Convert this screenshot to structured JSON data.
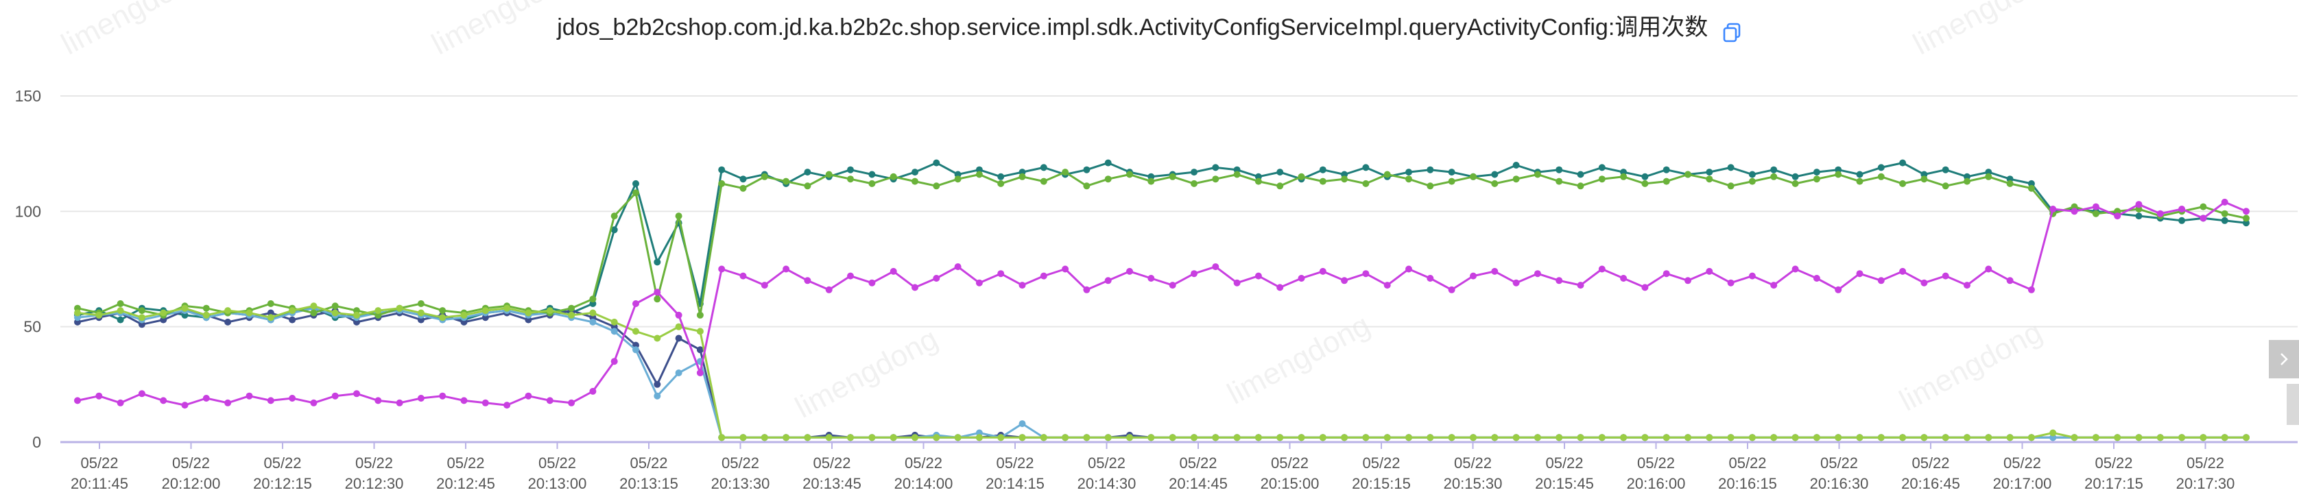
{
  "title": "jdos_b2b2cshop.com.jd.ka.b2b2c.shop.service.impl.sdk.ActivityConfigServiceImpl.queryActivityConfig:调用次数",
  "watermark_text": "limengdong",
  "icons": {
    "copy": "copy-icon",
    "next": "chevron-right-icon"
  },
  "chart_data": {
    "type": "line",
    "title": "jdos_b2b2cshop.com.jd.ka.b2b2c.shop.service.impl.sdk.ActivityConfigServiceImpl.queryActivityConfig:调用次数",
    "ylim": [
      0,
      150
    ],
    "y_ticks": [
      0,
      50,
      100,
      150
    ],
    "x_ticks": [
      {
        "date": "05/22",
        "time": "20:11:45"
      },
      {
        "date": "05/22",
        "time": "20:12:00"
      },
      {
        "date": "05/22",
        "time": "20:12:15"
      },
      {
        "date": "05/22",
        "time": "20:12:30"
      },
      {
        "date": "05/22",
        "time": "20:12:45"
      },
      {
        "date": "05/22",
        "time": "20:13:00"
      },
      {
        "date": "05/22",
        "time": "20:13:15"
      },
      {
        "date": "05/22",
        "time": "20:13:30"
      },
      {
        "date": "05/22",
        "time": "20:13:45"
      },
      {
        "date": "05/22",
        "time": "20:14:00"
      },
      {
        "date": "05/22",
        "time": "20:14:15"
      },
      {
        "date": "05/22",
        "time": "20:14:30"
      },
      {
        "date": "05/22",
        "time": "20:14:45"
      },
      {
        "date": "05/22",
        "time": "20:15:00"
      },
      {
        "date": "05/22",
        "time": "20:15:15"
      },
      {
        "date": "05/22",
        "time": "20:15:30"
      },
      {
        "date": "05/22",
        "time": "20:15:45"
      },
      {
        "date": "05/22",
        "time": "20:16:00"
      },
      {
        "date": "05/22",
        "time": "20:16:15"
      },
      {
        "date": "05/22",
        "time": "20:16:30"
      },
      {
        "date": "05/22",
        "time": "20:16:45"
      },
      {
        "date": "05/22",
        "time": "20:17:00"
      },
      {
        "date": "05/22",
        "time": "20:17:15"
      },
      {
        "date": "05/22",
        "time": "20:17:30"
      }
    ],
    "grid": true,
    "legend": "none",
    "series": [
      {
        "color": "#1f7d7a",
        "values": [
          55,
          57,
          53,
          58,
          57,
          55,
          54,
          56,
          55,
          53,
          57,
          58,
          54,
          55,
          56,
          57,
          55,
          54,
          53,
          56,
          57,
          55,
          58,
          56,
          60,
          92,
          112,
          78,
          95,
          60,
          118,
          114,
          116,
          112,
          117,
          115,
          118,
          116,
          114,
          117,
          121,
          116,
          118,
          115,
          117,
          119,
          116,
          118,
          121,
          117,
          115,
          116,
          117,
          119,
          118,
          115,
          117,
          114,
          118,
          116,
          119,
          115,
          117,
          118,
          117,
          115,
          116,
          120,
          117,
          118,
          116,
          119,
          117,
          115,
          118,
          116,
          117,
          119,
          116,
          118,
          115,
          117,
          118,
          116,
          119,
          121,
          116,
          118,
          115,
          117,
          114,
          112,
          100,
          101,
          100,
          99,
          98,
          97,
          96,
          97,
          96,
          95
        ]
      },
      {
        "color": "#3d4f8c",
        "values": [
          52,
          54,
          56,
          51,
          53,
          57,
          55,
          52,
          54,
          56,
          53,
          55,
          57,
          52,
          54,
          56,
          53,
          55,
          52,
          54,
          56,
          53,
          55,
          57,
          54,
          50,
          42,
          25,
          45,
          40,
          2,
          2,
          2,
          2,
          2,
          3,
          2,
          2,
          2,
          3,
          2,
          2,
          2,
          3,
          2,
          2,
          2,
          2,
          2,
          3,
          2,
          2,
          2,
          2,
          2,
          2,
          2,
          2,
          2,
          2,
          2,
          2,
          2,
          2,
          2,
          2,
          2,
          2,
          2,
          2,
          2,
          2,
          2,
          2,
          2,
          2,
          2,
          2,
          2,
          2,
          2,
          2,
          2,
          2,
          2,
          2,
          2,
          2,
          2,
          2,
          2,
          2,
          2,
          2,
          2,
          2,
          2,
          2,
          2,
          2,
          2,
          2
        ]
      },
      {
        "color": "#6aaed6",
        "values": [
          54,
          55,
          56,
          53,
          55,
          57,
          54,
          56,
          55,
          53,
          56,
          58,
          55,
          54,
          56,
          57,
          55,
          53,
          54,
          56,
          57,
          55,
          56,
          54,
          52,
          48,
          40,
          20,
          30,
          35,
          2,
          2,
          2,
          2,
          2,
          2,
          2,
          2,
          2,
          2,
          3,
          2,
          4,
          2,
          8,
          2,
          2,
          2,
          2,
          2,
          2,
          2,
          2,
          2,
          2,
          2,
          2,
          2,
          2,
          2,
          2,
          2,
          2,
          2,
          2,
          2,
          2,
          2,
          2,
          2,
          2,
          2,
          2,
          2,
          2,
          2,
          2,
          2,
          2,
          2,
          2,
          2,
          2,
          2,
          2,
          2,
          2,
          2,
          2,
          2,
          2,
          2,
          2,
          2,
          2,
          2,
          2,
          2,
          2,
          2,
          2,
          2
        ]
      },
      {
        "color": "#6ab23a",
        "values": [
          58,
          56,
          60,
          57,
          55,
          59,
          58,
          56,
          57,
          60,
          58,
          56,
          59,
          57,
          55,
          58,
          60,
          57,
          56,
          58,
          59,
          57,
          56,
          58,
          62,
          98,
          108,
          62,
          98,
          55,
          112,
          110,
          115,
          113,
          111,
          116,
          114,
          112,
          115,
          113,
          111,
          114,
          116,
          112,
          115,
          113,
          117,
          111,
          114,
          116,
          113,
          115,
          112,
          114,
          116,
          113,
          111,
          115,
          113,
          114,
          112,
          116,
          114,
          111,
          113,
          115,
          112,
          114,
          116,
          113,
          111,
          114,
          115,
          112,
          113,
          116,
          114,
          111,
          113,
          115,
          112,
          114,
          116,
          113,
          115,
          112,
          114,
          111,
          113,
          115,
          112,
          110,
          99,
          102,
          99,
          100,
          101,
          98,
          100,
          102,
          99,
          97
        ]
      },
      {
        "color": "#9acd44",
        "values": [
          56,
          55,
          57,
          54,
          56,
          58,
          55,
          57,
          56,
          54,
          57,
          59,
          56,
          55,
          57,
          58,
          56,
          54,
          55,
          57,
          58,
          56,
          57,
          55,
          56,
          52,
          48,
          45,
          50,
          48,
          2,
          2,
          2,
          2,
          2,
          2,
          2,
          2,
          2,
          2,
          2,
          2,
          2,
          2,
          2,
          2,
          2,
          2,
          2,
          2,
          2,
          2,
          2,
          2,
          2,
          2,
          2,
          2,
          2,
          2,
          2,
          2,
          2,
          2,
          2,
          2,
          2,
          2,
          2,
          2,
          2,
          2,
          2,
          2,
          2,
          2,
          2,
          2,
          2,
          2,
          2,
          2,
          2,
          2,
          2,
          2,
          2,
          2,
          2,
          2,
          2,
          2,
          4,
          2,
          2,
          2,
          2,
          2,
          2,
          2,
          2,
          2
        ]
      },
      {
        "color": "#c83fe0",
        "values": [
          18,
          20,
          17,
          21,
          18,
          16,
          19,
          17,
          20,
          18,
          19,
          17,
          20,
          21,
          18,
          17,
          19,
          20,
          18,
          17,
          16,
          20,
          18,
          17,
          22,
          35,
          60,
          65,
          55,
          30,
          75,
          72,
          68,
          75,
          70,
          66,
          72,
          69,
          74,
          67,
          71,
          76,
          69,
          73,
          68,
          72,
          75,
          66,
          70,
          74,
          71,
          68,
          73,
          76,
          69,
          72,
          67,
          71,
          74,
          70,
          73,
          68,
          75,
          71,
          66,
          72,
          74,
          69,
          73,
          70,
          68,
          75,
          71,
          67,
          73,
          70,
          74,
          69,
          72,
          68,
          75,
          71,
          66,
          73,
          70,
          74,
          69,
          72,
          68,
          75,
          70,
          66,
          101,
          100,
          102,
          98,
          103,
          99,
          101,
          97,
          104,
          100
        ]
      }
    ]
  }
}
